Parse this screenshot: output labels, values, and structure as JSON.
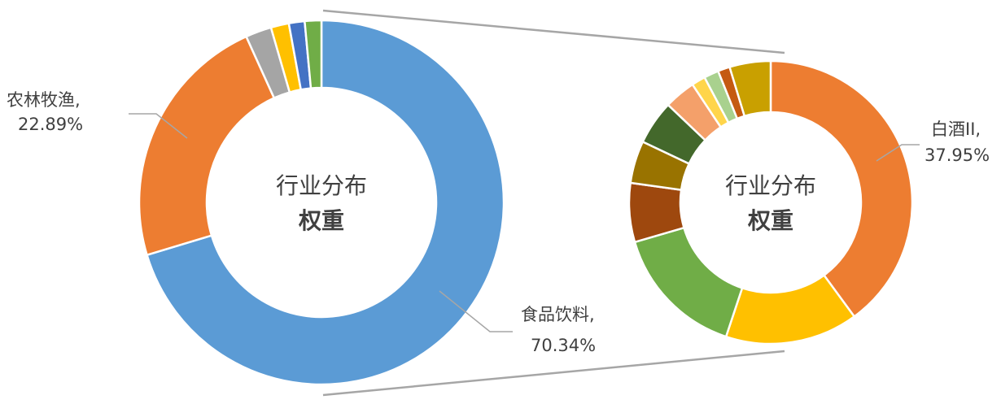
{
  "chart_data": [
    {
      "type": "donut",
      "center_label": [
        "行业分布",
        "权重"
      ],
      "series": [
        {
          "name": "食品饮料",
          "value": 70.34,
          "color": "#5B9BD5"
        },
        {
          "name": "农林牧渔",
          "value": 22.89,
          "color": "#ED7D31"
        },
        {
          "name": "",
          "value": 2.3,
          "color": "#A5A5A5"
        },
        {
          "name": "",
          "value": 1.6,
          "color": "#FFC000"
        },
        {
          "name": "",
          "value": 1.4,
          "color": "#4472C4"
        },
        {
          "name": "",
          "value": 1.47,
          "color": "#70AD47"
        }
      ],
      "labels": [
        {
          "line1": "农林牧渔,",
          "line2": "22.89%"
        },
        {
          "line1": "食品饮料,",
          "line2": "70.34%"
        }
      ]
    },
    {
      "type": "donut",
      "center_label": [
        "行业分布",
        "权重"
      ],
      "series": [
        {
          "name": "白酒II",
          "value": 37.95,
          "color": "#ED7D31"
        },
        {
          "name": "",
          "value": 14.4,
          "color": "#FFC000"
        },
        {
          "name": "",
          "value": 14.6,
          "color": "#70AD47"
        },
        {
          "name": "",
          "value": 6.4,
          "color": "#9E480E"
        },
        {
          "name": "",
          "value": 4.6,
          "color": "#997300"
        },
        {
          "name": "",
          "value": 4.8,
          "color": "#43682B"
        },
        {
          "name": "",
          "value": 3.4,
          "color": "#F4A06A"
        },
        {
          "name": "",
          "value": 1.5,
          "color": "#FFD54A"
        },
        {
          "name": "",
          "value": 1.6,
          "color": "#A9D18E"
        },
        {
          "name": "",
          "value": 1.3,
          "color": "#C55A11"
        },
        {
          "name": "",
          "value": 4.45,
          "color": "#C9A000"
        }
      ],
      "labels": [
        {
          "line1": "白酒II,",
          "line2": "37.95%"
        }
      ]
    }
  ]
}
